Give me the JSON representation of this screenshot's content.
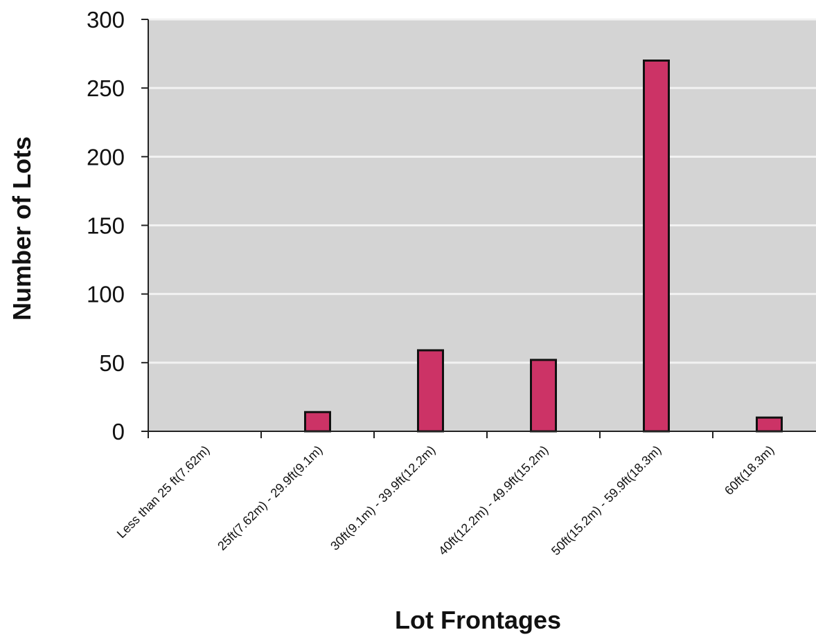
{
  "chart_data": {
    "type": "bar",
    "categories": [
      "Less than 25 ft(7.62m)",
      "25ft(7.62m) - 29.9ft(9.1m)",
      "30ft(9.1m) - 39.9ft(12.2m)",
      "40ft(12.2m) - 49.9ft(15.2m)",
      "50ft(15.2m) - 59.9ft(18.3m)",
      "60ft(18.3m)"
    ],
    "values": [
      0,
      14,
      59,
      52,
      270,
      10
    ],
    "title": "",
    "xlabel": "Lot Frontages",
    "ylabel": "Number of Lots",
    "ylim": [
      0,
      300
    ],
    "yticks": [
      0,
      50,
      100,
      150,
      200,
      250,
      300
    ],
    "grid": true,
    "legend": "none",
    "colors": {
      "bar": "#cc3366",
      "plot_background": "#d4d4d4",
      "gridline": "#f2f2f2",
      "axis": "#222222"
    }
  }
}
